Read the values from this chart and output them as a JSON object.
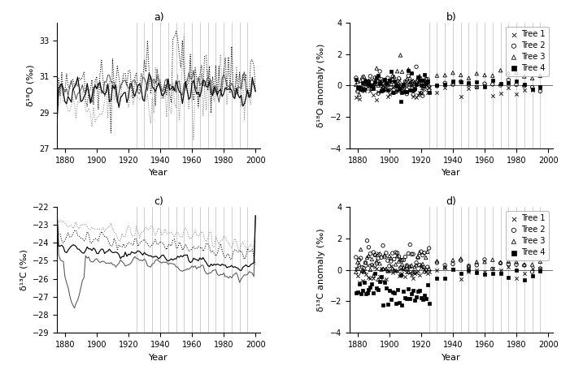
{
  "title_a": "a)",
  "title_b": "b)",
  "title_c": "c)",
  "title_d": "d)",
  "ylabel_a": "δ¹⁸O (‰)",
  "ylabel_b": "δ¹⁸O anomaly (‰)",
  "ylabel_c": "δ¹³C (‰)",
  "ylabel_d": "δ¹³C anomaly (‰)",
  "xlabel": "Year",
  "ylim_a": [
    27,
    34
  ],
  "ylim_b": [
    -4,
    4
  ],
  "ylim_c": [
    -29,
    -22
  ],
  "ylim_d": [
    -4,
    4
  ],
  "yticks_a": [
    27,
    29,
    31,
    33
  ],
  "yticks_b": [
    -4,
    -2,
    0,
    2,
    4
  ],
  "yticks_c": [
    -29,
    -28,
    -27,
    -26,
    -25,
    -24,
    -23,
    -22
  ],
  "yticks_d": [
    -4,
    -2,
    0,
    2,
    4
  ],
  "xlim": [
    1875,
    2003
  ],
  "xticks": [
    1880,
    1900,
    1920,
    1940,
    1960,
    1980,
    2000
  ],
  "legend_labels": [
    "Tree 1",
    "Tree 2",
    "Tree 3",
    "Tree 4"
  ],
  "legend_markers": [
    "x",
    "o",
    "^",
    "s"
  ],
  "background_color": "#ffffff"
}
